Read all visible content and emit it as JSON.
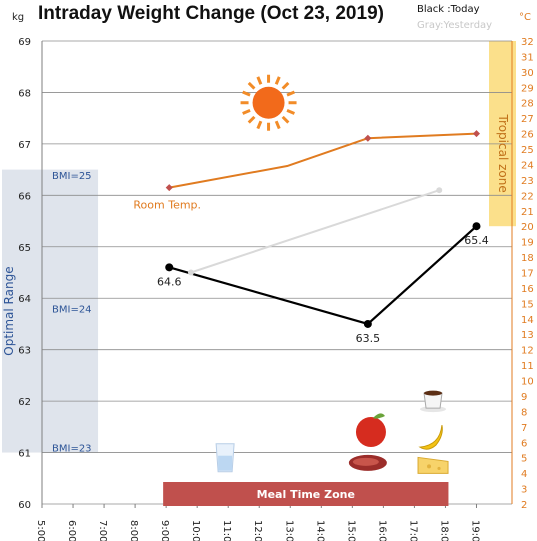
{
  "header": {
    "title": "Intraday Weight Change (Oct 23, 2019)",
    "legend_today": "Black :Today",
    "legend_yesterday": "Gray:Yesterday",
    "unit_left": "kg",
    "unit_right": "°C"
  },
  "chart_data": {
    "type": "line",
    "title": "Intraday Weight Change (Oct 23, 2019)",
    "x": {
      "ticks": [
        "5:00",
        "6:00",
        "7:00",
        "8:00",
        "9:00",
        "10:00",
        "11:00",
        "12:00",
        "13:00",
        "14:00",
        "15:00",
        "16:00",
        "17:00",
        "18:00",
        "19:00"
      ],
      "range": [
        5,
        19.5
      ],
      "label_rotation": "vertical"
    },
    "y_left": {
      "label": "kg",
      "range": [
        60,
        69
      ],
      "ticks": [
        60,
        61,
        62,
        63,
        64,
        65,
        66,
        67,
        68,
        69
      ],
      "gridlines": true
    },
    "y_right": {
      "label": "°C",
      "range": [
        2,
        32
      ],
      "ticks": [
        2,
        3,
        4,
        5,
        6,
        7,
        8,
        9,
        10,
        11,
        12,
        13,
        14,
        15,
        16,
        17,
        18,
        19,
        20,
        21,
        22,
        23,
        24,
        25,
        26,
        27,
        28,
        29,
        30,
        31,
        32
      ],
      "color": "#e07b20"
    },
    "series": [
      {
        "name": "Today",
        "color": "#000000",
        "axis": "left",
        "points": [
          {
            "x": 9.1,
            "y": 64.6
          },
          {
            "x": 15.5,
            "y": 63.5
          },
          {
            "x": 19.0,
            "y": 65.4
          }
        ],
        "data_labels": [
          "64.6",
          "63.5",
          "65.4"
        ]
      },
      {
        "name": "Yesterday",
        "color": "#d9d9d9",
        "axis": "left",
        "points": [
          {
            "x": 9.8,
            "y": 64.5
          },
          {
            "x": 17.8,
            "y": 66.1
          }
        ]
      },
      {
        "name": "Room Temp.",
        "color": "#e07b20",
        "axis": "right",
        "points": [
          {
            "x": 9.1,
            "y": 22.5
          },
          {
            "x": 12.9,
            "y": 23.9
          },
          {
            "x": 15.5,
            "y": 25.7
          },
          {
            "x": 19.0,
            "y": 26.0
          }
        ],
        "label": "Room Temp."
      }
    ],
    "bands": [
      {
        "name": "Optimal Range",
        "orientation": "vertical",
        "x_range": [
          5.0,
          7.0
        ],
        "y_range": [
          61.0,
          66.5
        ],
        "color": "#dfe4ec",
        "label": "Optimal Range"
      },
      {
        "name": "Tropical zone",
        "orientation": "vertical",
        "x_range": [
          19.1,
          19.5
        ],
        "y_range_right": [
          20,
          32
        ],
        "color": "#fbe08b",
        "label": "Tropical zone"
      },
      {
        "name": "Meal Time Zone",
        "orientation": "horizontal",
        "x_range": [
          9.0,
          18.0
        ],
        "y_range": [
          60.0,
          60.45
        ],
        "color": "#c0504d",
        "label": "Meal Time Zone"
      }
    ],
    "bmi_marks": [
      {
        "label": "BMI=25",
        "y": 66.4
      },
      {
        "label": "BMI=24",
        "y": 63.8
      },
      {
        "label": "BMI=23",
        "y": 61.1
      }
    ],
    "icons": [
      {
        "name": "sun-icon",
        "x": 12.3,
        "y": 67.8
      },
      {
        "name": "water-glass-icon",
        "x": 10.9,
        "y": 60.9
      },
      {
        "name": "apple-icon",
        "x": 15.6,
        "y": 61.4
      },
      {
        "name": "meat-icon",
        "x": 15.5,
        "y": 60.8
      },
      {
        "name": "coffee-cup-icon",
        "x": 17.6,
        "y": 62.0
      },
      {
        "name": "banana-icon",
        "x": 17.5,
        "y": 61.3
      },
      {
        "name": "cheese-icon",
        "x": 17.6,
        "y": 60.75
      }
    ],
    "legend": "top-right",
    "grid": true
  }
}
